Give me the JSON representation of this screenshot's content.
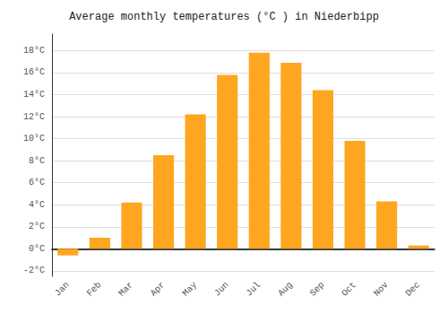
{
  "chart_data": {
    "type": "bar",
    "title": "Average monthly temperatures (°C ) in Niederbipp",
    "categories": [
      "Jan",
      "Feb",
      "Mar",
      "Apr",
      "May",
      "Jun",
      "Jul",
      "Aug",
      "Sep",
      "Oct",
      "Nov",
      "Dec"
    ],
    "values": [
      -0.6,
      1.0,
      4.2,
      8.5,
      12.2,
      15.8,
      17.8,
      16.9,
      14.4,
      9.8,
      4.3,
      0.3
    ],
    "color": "#FFA620",
    "ylim": [
      -2.5,
      19.5
    ],
    "yticks": [
      {
        "value": -2,
        "label": "-2°C"
      },
      {
        "value": 0,
        "label": "0°C"
      },
      {
        "value": 2,
        "label": "2°C"
      },
      {
        "value": 4,
        "label": "4°C"
      },
      {
        "value": 6,
        "label": "6°C"
      },
      {
        "value": 8,
        "label": "8°C"
      },
      {
        "value": 10,
        "label": "10°C"
      },
      {
        "value": 12,
        "label": "12°C"
      },
      {
        "value": 14,
        "label": "14°C"
      },
      {
        "value": 16,
        "label": "16°C"
      },
      {
        "value": 18,
        "label": "18°C"
      }
    ],
    "grid": true
  }
}
